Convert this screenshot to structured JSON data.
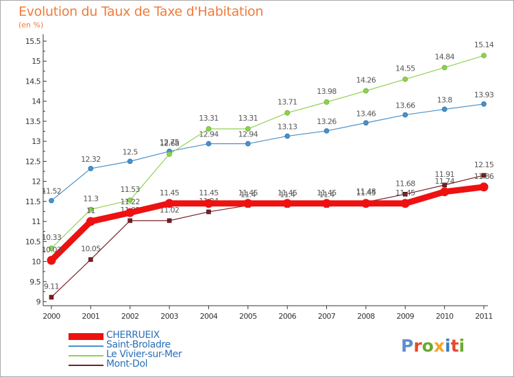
{
  "title": "Evolution du Taux de Taxe d'Habitation",
  "unit": "(en %)",
  "logo": {
    "text": "Proxiti",
    "colors": [
      "#5b8fd0",
      "#e8492a",
      "#6aaa2e",
      "#f3a52b",
      "#3a7ec6",
      "#e8492a",
      "#6aaa2e"
    ]
  },
  "chart_data": {
    "type": "line",
    "title": "Evolution du Taux de Taxe d'Habitation",
    "ylabel": "(en %)",
    "xlabel": "",
    "x": [
      "2000",
      "2001",
      "2002",
      "2003",
      "2004",
      "2005",
      "2006",
      "2007",
      "2008",
      "2009",
      "2010",
      "2011"
    ],
    "ylim": [
      9,
      15.5
    ],
    "yticks": [
      "9",
      "9.5",
      "10",
      "10.5",
      "11",
      "11.5",
      "12",
      "12.5",
      "13",
      "13.5",
      "14",
      "14.5",
      "15",
      "15.5"
    ],
    "grid": false,
    "legend": "bottom-left",
    "series": [
      {
        "name": "CHERRUEIX",
        "color": "#ee1111",
        "values": [
          10.03,
          11,
          11.22,
          11.45,
          11.45,
          11.45,
          11.45,
          11.45,
          11.45,
          11.45,
          11.74,
          11.86
        ],
        "labels": [
          "10.03",
          "11",
          "11.22",
          "11.45",
          "11.45",
          "11.45",
          "11.45",
          "11.45",
          "11.45",
          "11.45",
          "11.74",
          "11.86"
        ]
      },
      {
        "name": "Saint-Broladre",
        "color": "#4a90c8",
        "values": [
          11.52,
          12.32,
          12.5,
          12.75,
          12.94,
          12.94,
          13.13,
          13.26,
          13.46,
          13.66,
          13.8,
          13.93
        ],
        "labels": [
          "11.52",
          "12.32",
          "12.5",
          "12.75",
          "12.94",
          "12.94",
          "13.13",
          "13.26",
          "13.46",
          "13.66",
          "13.8",
          "13.93"
        ]
      },
      {
        "name": "Le Vivier-sur-Mer",
        "color": "#8fd14f",
        "values": [
          10.33,
          11.3,
          11.53,
          12.68,
          13.31,
          13.31,
          13.71,
          13.98,
          14.26,
          14.55,
          14.84,
          15.14
        ],
        "labels": [
          "10.33",
          "11.3",
          "11.53",
          "12.68",
          "13.31",
          "13.31",
          "13.71",
          "13.98",
          "14.26",
          "14.55",
          "14.84",
          "15.14"
        ]
      },
      {
        "name": "Mont-Dol",
        "color": "#7a1f24",
        "values": [
          9.11,
          10.05,
          11.02,
          11.02,
          11.24,
          11.4,
          11.4,
          11.4,
          11.48,
          11.68,
          11.91,
          12.15
        ],
        "labels": [
          "9.11",
          "10.05",
          "11.02",
          "11.02",
          "11.24",
          "11.4",
          "11.4",
          "11.4",
          "11.48",
          "11.68",
          "11.91",
          "12.15"
        ]
      }
    ]
  }
}
